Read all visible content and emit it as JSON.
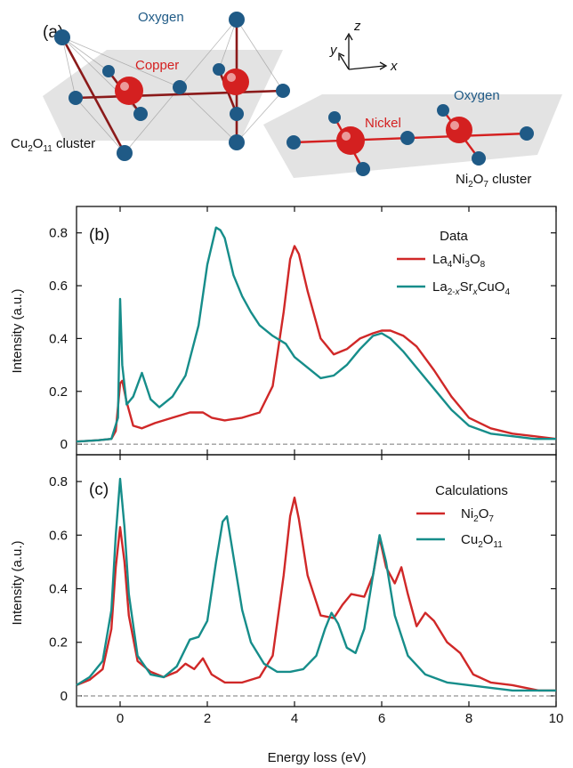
{
  "panel_a": {
    "label": "(a)",
    "cu_cluster": {
      "oxygen": "Oxygen",
      "copper": "Copper",
      "cluster": "Cu2O11 cluster"
    },
    "ni_cluster": {
      "oxygen": "Oxygen",
      "nickel": "Nickel",
      "cluster": "Ni2O7 cluster"
    },
    "axes": {
      "x": "x",
      "y": "y",
      "z": "z"
    },
    "colors": {
      "oxygen": "#1f5a86",
      "metal": "#d42020",
      "bond": "#8b1a1a",
      "plane": "#d9d9d9"
    }
  },
  "chart_data": [
    {
      "type": "line",
      "panel_label": "(b)",
      "legend_title": "Data",
      "xlim": [
        -1,
        10
      ],
      "ylim": [
        -0.04,
        0.9
      ],
      "xticks": [
        0,
        2,
        4,
        6,
        8,
        10
      ],
      "yticks": [
        0,
        0.2,
        0.4,
        0.6,
        0.8
      ],
      "ytick_labels": [
        "0",
        "0.2",
        "0.4",
        "0.6",
        "0.8"
      ],
      "ylabel": "Intensity (a.u.)",
      "grid": false,
      "legend_position": "top-right",
      "series": [
        {
          "name": "La4Ni3O8",
          "color": "#d02828",
          "x": [
            -1,
            -0.5,
            -0.2,
            -0.1,
            0,
            0.05,
            0.15,
            0.3,
            0.5,
            0.8,
            1.2,
            1.6,
            1.9,
            2.1,
            2.4,
            2.8,
            3.2,
            3.5,
            3.75,
            3.9,
            4.0,
            4.1,
            4.3,
            4.6,
            4.9,
            5.2,
            5.5,
            5.8,
            6.0,
            6.2,
            6.5,
            6.8,
            7.2,
            7.6,
            8.0,
            8.5,
            9.0,
            9.5,
            10
          ],
          "y": [
            0.01,
            0.015,
            0.02,
            0.05,
            0.23,
            0.24,
            0.16,
            0.07,
            0.06,
            0.08,
            0.1,
            0.12,
            0.12,
            0.1,
            0.09,
            0.1,
            0.12,
            0.22,
            0.5,
            0.7,
            0.75,
            0.72,
            0.58,
            0.4,
            0.34,
            0.36,
            0.4,
            0.42,
            0.43,
            0.43,
            0.41,
            0.37,
            0.28,
            0.18,
            0.1,
            0.06,
            0.04,
            0.03,
            0.02
          ]
        },
        {
          "name": "La2-xSrxCuO4",
          "color": "#168d8a",
          "x": [
            -1,
            -0.5,
            -0.2,
            -0.05,
            0,
            0.05,
            0.15,
            0.3,
            0.5,
            0.7,
            0.9,
            1.2,
            1.5,
            1.8,
            2.0,
            2.2,
            2.3,
            2.4,
            2.6,
            2.8,
            3.0,
            3.2,
            3.5,
            3.8,
            4.0,
            4.3,
            4.6,
            4.9,
            5.2,
            5.5,
            5.8,
            6.0,
            6.2,
            6.5,
            6.8,
            7.2,
            7.6,
            8.0,
            8.5,
            9.0,
            9.5,
            10
          ],
          "y": [
            0.01,
            0.015,
            0.02,
            0.1,
            0.55,
            0.3,
            0.15,
            0.18,
            0.27,
            0.17,
            0.14,
            0.18,
            0.26,
            0.45,
            0.68,
            0.82,
            0.81,
            0.78,
            0.64,
            0.56,
            0.5,
            0.45,
            0.41,
            0.38,
            0.33,
            0.29,
            0.25,
            0.26,
            0.3,
            0.36,
            0.41,
            0.42,
            0.4,
            0.35,
            0.29,
            0.21,
            0.13,
            0.07,
            0.04,
            0.03,
            0.02,
            0.02
          ]
        }
      ]
    },
    {
      "type": "line",
      "panel_label": "(c)",
      "legend_title": "Calculations",
      "xlim": [
        -1,
        10
      ],
      "ylim": [
        -0.04,
        0.9
      ],
      "xticks": [
        0,
        2,
        4,
        6,
        8,
        10
      ],
      "xtick_labels": [
        "0",
        "2",
        "4",
        "6",
        "8",
        "10"
      ],
      "yticks": [
        0,
        0.2,
        0.4,
        0.6,
        0.8
      ],
      "ytick_labels": [
        "0",
        "0.2",
        "0.4",
        "0.6",
        "0.8"
      ],
      "xlabel": "Energy loss (eV)",
      "ylabel": "Intensity (a.u.)",
      "grid": false,
      "legend_position": "top-right",
      "series": [
        {
          "name": "Ni2O7",
          "color": "#d02828",
          "x": [
            -1,
            -0.7,
            -0.4,
            -0.2,
            -0.1,
            0,
            0.1,
            0.2,
            0.4,
            0.7,
            1.0,
            1.3,
            1.5,
            1.7,
            1.9,
            2.1,
            2.4,
            2.8,
            3.2,
            3.5,
            3.75,
            3.9,
            4.0,
            4.1,
            4.3,
            4.6,
            4.9,
            5.1,
            5.3,
            5.6,
            5.8,
            5.95,
            6.1,
            6.3,
            6.45,
            6.6,
            6.8,
            7.0,
            7.2,
            7.5,
            7.8,
            8.1,
            8.5,
            9.0,
            9.3,
            9.6,
            10
          ],
          "y": [
            0.04,
            0.06,
            0.1,
            0.25,
            0.48,
            0.63,
            0.5,
            0.3,
            0.13,
            0.09,
            0.07,
            0.09,
            0.12,
            0.1,
            0.14,
            0.08,
            0.05,
            0.05,
            0.07,
            0.15,
            0.45,
            0.67,
            0.74,
            0.66,
            0.45,
            0.3,
            0.29,
            0.34,
            0.38,
            0.37,
            0.45,
            0.59,
            0.48,
            0.42,
            0.48,
            0.38,
            0.26,
            0.31,
            0.28,
            0.2,
            0.16,
            0.08,
            0.05,
            0.04,
            0.03,
            0.02,
            0.02
          ]
        },
        {
          "name": "Cu2O11",
          "color": "#168d8a",
          "x": [
            -1,
            -0.7,
            -0.4,
            -0.2,
            -0.1,
            0,
            0.1,
            0.2,
            0.4,
            0.7,
            1.0,
            1.3,
            1.6,
            1.8,
            2.0,
            2.2,
            2.35,
            2.45,
            2.6,
            2.8,
            3.0,
            3.3,
            3.6,
            3.9,
            4.2,
            4.5,
            4.7,
            4.85,
            5.0,
            5.2,
            5.4,
            5.6,
            5.8,
            5.95,
            6.1,
            6.3,
            6.6,
            7.0,
            7.5,
            8.0,
            8.5,
            9.0,
            9.5,
            10
          ],
          "y": [
            0.04,
            0.07,
            0.13,
            0.32,
            0.6,
            0.81,
            0.63,
            0.38,
            0.15,
            0.08,
            0.07,
            0.11,
            0.21,
            0.22,
            0.28,
            0.5,
            0.65,
            0.67,
            0.52,
            0.32,
            0.2,
            0.12,
            0.09,
            0.09,
            0.1,
            0.15,
            0.25,
            0.31,
            0.27,
            0.18,
            0.16,
            0.25,
            0.45,
            0.6,
            0.5,
            0.3,
            0.15,
            0.08,
            0.05,
            0.04,
            0.03,
            0.02,
            0.02,
            0.02
          ]
        }
      ]
    }
  ]
}
